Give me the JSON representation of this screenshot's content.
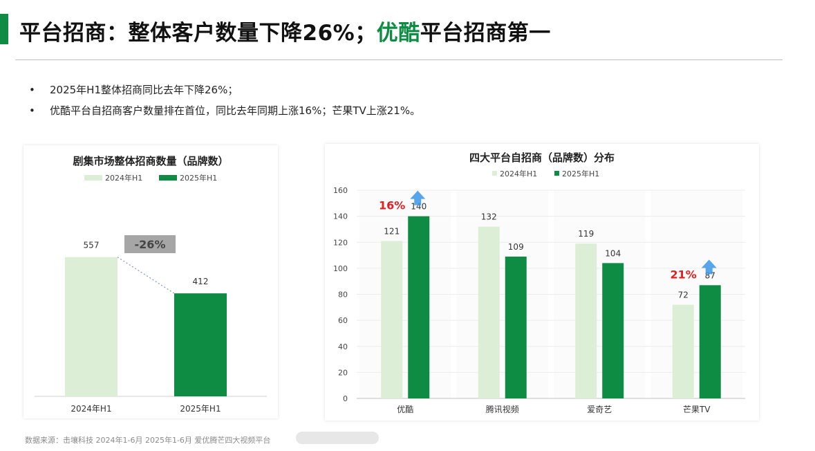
{
  "header": {
    "title_part1": "平台招商：整体客户数量下降26%；",
    "title_highlight": "优酷",
    "title_part2": "平台招商第一"
  },
  "bullets": [
    "2025年H1整体招商同比去年下降26%；",
    "优酷平台自招商客户数量排在首位，同比去年同期上涨16%；芒果TV上涨21%。"
  ],
  "bullet_symbol": "•",
  "colors": {
    "brand": "#0e8c43",
    "light_bar": "#dceed6",
    "dark_bar": "#0e8c43",
    "growth_text": "#e02020",
    "arrow": "#3a95e6",
    "change_box": "#a6a6a6"
  },
  "chart_data": [
    {
      "type": "bar",
      "title": "剧集市场整体招商数量（品牌数）",
      "categories": [
        "2024年H1",
        "2025年H1"
      ],
      "values": [
        557,
        412
      ],
      "legend": [
        "2024年H1",
        "2025年H1"
      ],
      "legend_position": "top",
      "annotation": "-26%",
      "ylim": [
        0,
        700
      ],
      "grid": false
    },
    {
      "type": "bar",
      "title": "四大平台自招商（品牌数）分布",
      "categories": [
        "优酷",
        "腾讯视频",
        "爱奇艺",
        "芒果TV"
      ],
      "series": [
        {
          "name": "2024年H1",
          "values": [
            121,
            132,
            119,
            72
          ]
        },
        {
          "name": "2025年H1",
          "values": [
            140,
            109,
            104,
            87
          ]
        }
      ],
      "yticks": [
        0,
        20,
        40,
        60,
        80,
        100,
        120,
        140,
        160
      ],
      "ylim": [
        0,
        160
      ],
      "legend_position": "top",
      "annotations": [
        {
          "category": "优酷",
          "text": "16%"
        },
        {
          "category": "芒果TV",
          "text": "21%"
        }
      ],
      "grid": true
    }
  ],
  "footer": {
    "source": "数据来源：击壤科技 2024年1-6月 2025年1-6月 爱优腾芒四大视频平台"
  }
}
